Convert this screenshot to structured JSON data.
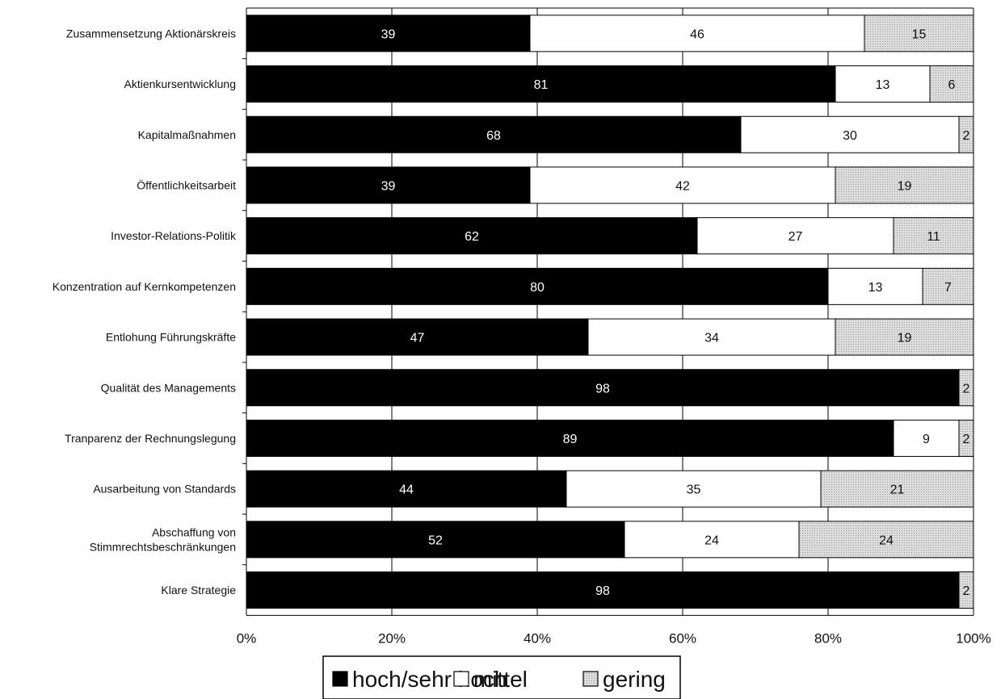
{
  "chart_data": {
    "type": "bar",
    "orientation": "horizontal",
    "stacked": "percent",
    "categories": [
      "Zusammensetzung Aktionärskreis",
      "Aktienkursentwicklung",
      "Kapitalmaßnahmen",
      "Öffentlichkeitsarbeit",
      "Investor-Relations-Politik",
      "Konzentration auf Kernkompetenzen",
      "Entlohung Führungskräfte",
      "Qualität des Managements",
      "Tranparenz der Rechnungslegung",
      "Ausarbeitung von Standards",
      "Abschaffung von Stimmrechtsbeschränkungen",
      "Klare Strategie"
    ],
    "category_lines": [
      [
        "Zusammensetzung Aktionärskreis"
      ],
      [
        "Aktienkursentwicklung"
      ],
      [
        "Kapitalmaßnahmen"
      ],
      [
        "Öffentlichkeitsarbeit"
      ],
      [
        "Investor-Relations-Politik"
      ],
      [
        "Konzentration auf Kernkompetenzen"
      ],
      [
        "Entlohung Führungskräfte"
      ],
      [
        "Qualität des Managements"
      ],
      [
        "Tranparenz der Rechnungslegung"
      ],
      [
        "Ausarbeitung von Standards"
      ],
      [
        "Abschaffung von",
        "Stimmrechtsbeschränkungen"
      ],
      [
        "Klare Strategie"
      ]
    ],
    "series": [
      {
        "name": "hoch/sehr hoch",
        "color": "#000000",
        "label_color": "#ffffff",
        "values": [
          39,
          81,
          68,
          39,
          62,
          80,
          47,
          98,
          89,
          44,
          52,
          98
        ]
      },
      {
        "name": "mittel",
        "color": "#ffffff",
        "label_color": "#111111",
        "values": [
          46,
          13,
          30,
          42,
          27,
          13,
          34,
          0,
          9,
          35,
          24,
          0
        ]
      },
      {
        "name": "gering",
        "color": "#d2d2d2",
        "label_color": "#111111",
        "values": [
          15,
          6,
          2,
          19,
          11,
          7,
          19,
          2,
          2,
          21,
          24,
          2
        ]
      }
    ],
    "x_ticks": [
      "0%",
      "20%",
      "40%",
      "60%",
      "80%",
      "100%"
    ],
    "xlim": [
      0,
      100
    ],
    "grid": true,
    "legend_position": "bottom"
  }
}
